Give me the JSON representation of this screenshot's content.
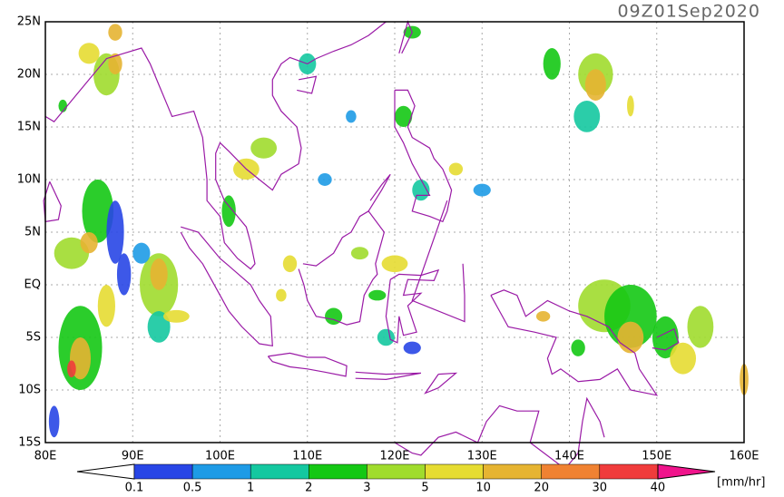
{
  "title": "09Z01Sep2020",
  "map": {
    "lat_labels": [
      "25N",
      "20N",
      "15N",
      "10N",
      "5N",
      "EQ",
      "5S",
      "10S",
      "15S"
    ],
    "lon_labels": [
      "80E",
      "90E",
      "100E",
      "110E",
      "120E",
      "130E",
      "140E",
      "150E",
      "160E"
    ]
  },
  "colorbar": {
    "labels": [
      "0.1",
      "0.5",
      "1",
      "2",
      "3",
      "5",
      "10",
      "20",
      "30",
      "40"
    ],
    "unit": "[mm/hr]"
  }
}
